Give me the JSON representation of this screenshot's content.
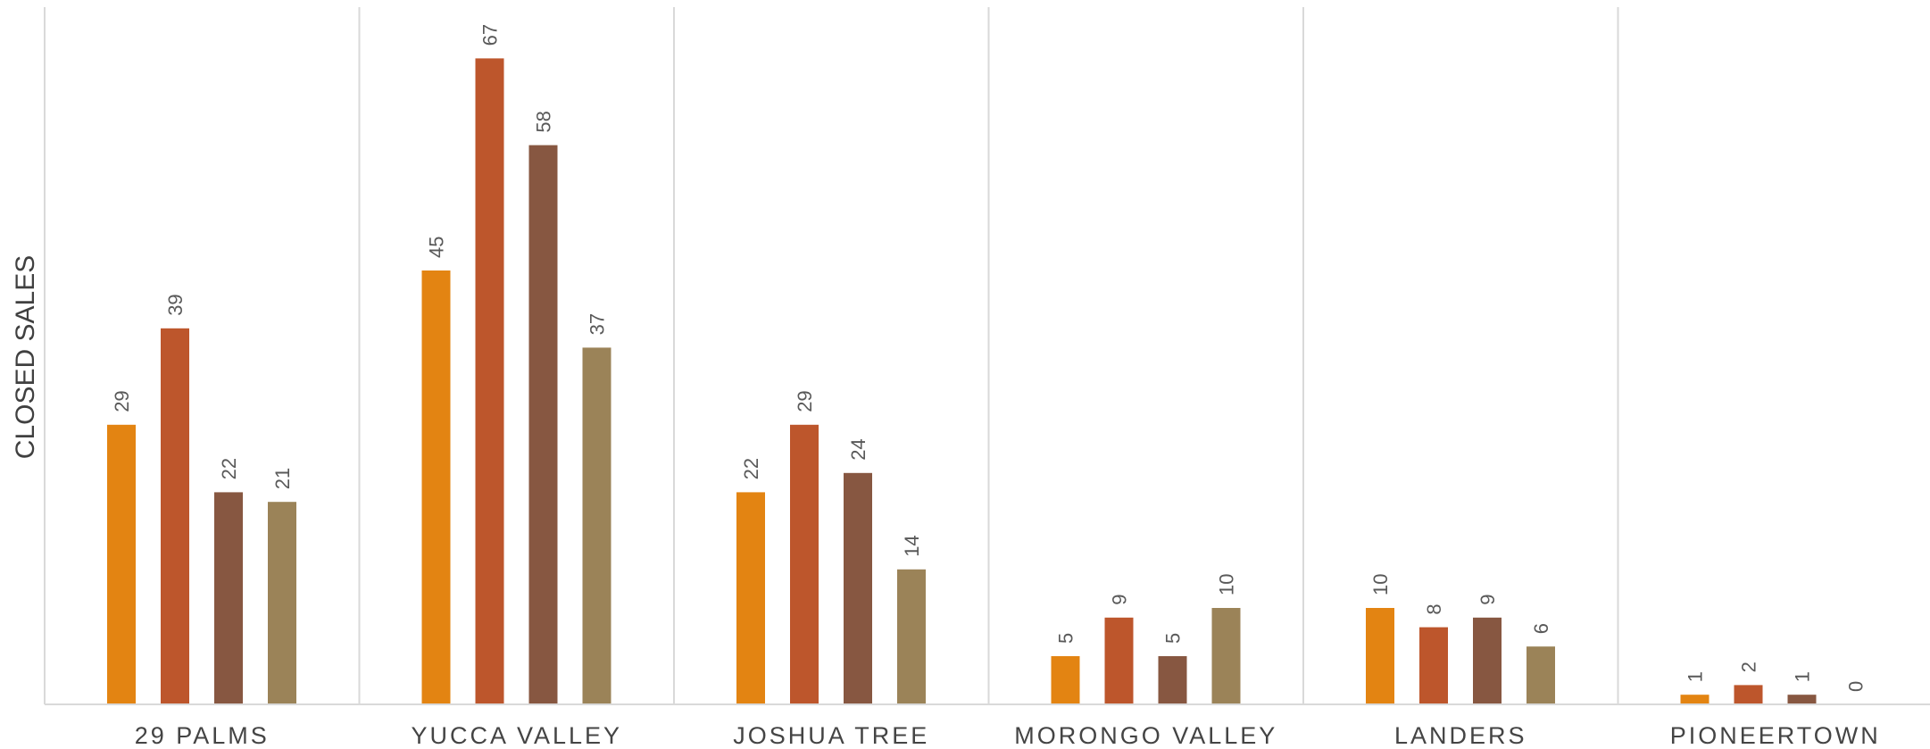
{
  "chart_data": {
    "type": "bar",
    "title": "",
    "xlabel": "",
    "ylabel": "CLOSED SALES",
    "categories": [
      "29 PALMS",
      "YUCCA VALLEY",
      "JOSHUA TREE",
      "MORONGO VALLEY",
      "LANDERS",
      "PIONEERTOWN"
    ],
    "series": [
      {
        "values": [
          29,
          45,
          22,
          5,
          10,
          1
        ],
        "color": "#E38412"
      },
      {
        "values": [
          39,
          67,
          29,
          9,
          8,
          2
        ],
        "color": "#BD562C"
      },
      {
        "values": [
          22,
          58,
          24,
          5,
          9,
          1
        ],
        "color": "#875741"
      },
      {
        "values": [
          21,
          37,
          14,
          10,
          6,
          0
        ],
        "color": "#9B8358"
      }
    ],
    "ylim": [
      0,
      80
    ],
    "grid": {
      "vertical_separators": true,
      "horizontal": false
    },
    "legend": "none"
  }
}
